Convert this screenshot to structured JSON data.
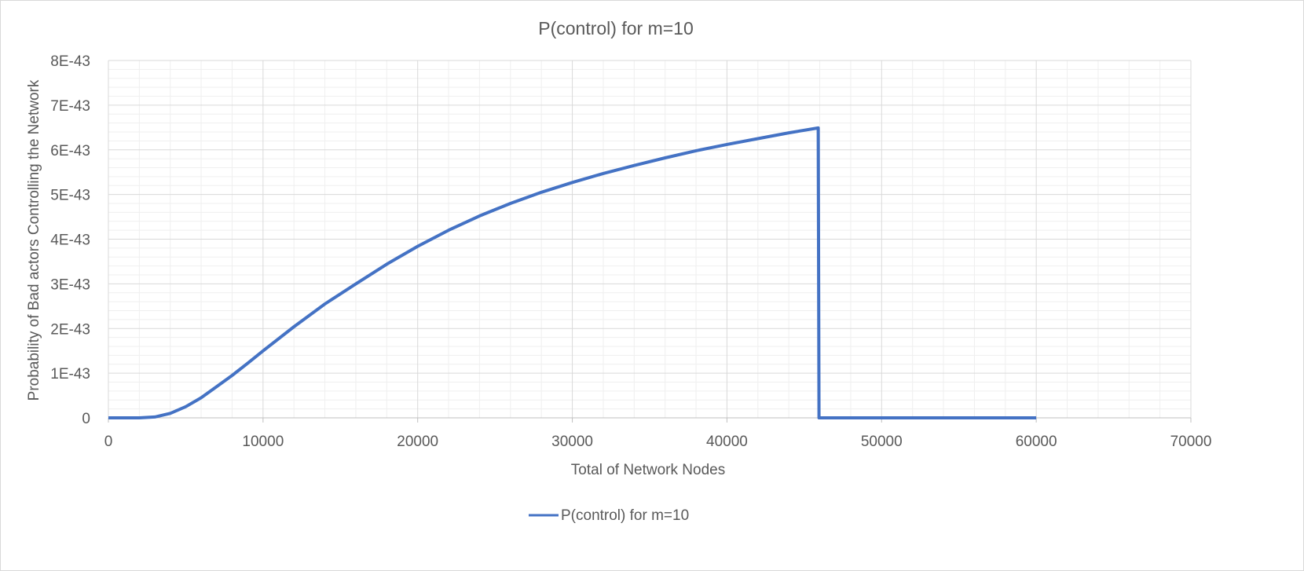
{
  "chart_data": {
    "type": "line",
    "title": "P(control) for m=10",
    "xlabel": "Total of Network Nodes",
    "ylabel": "Probability of Bad actors Controlling the Network",
    "xlim": [
      0,
      70000
    ],
    "ylim": [
      0,
      8e-43
    ],
    "x_ticks": [
      "0",
      "10000",
      "20000",
      "30000",
      "40000",
      "50000",
      "60000",
      "70000"
    ],
    "y_ticks": [
      "0",
      "1E-43",
      "2E-43",
      "3E-43",
      "4E-43",
      "5E-43",
      "6E-43",
      "7E-43",
      "8E-43"
    ],
    "grid": true,
    "legend_position": "bottom",
    "series": [
      {
        "name": "P(control) for m=10",
        "color": "#4472C4",
        "x": [
          0,
          2000,
          3000,
          4000,
          5000,
          6000,
          7000,
          8000,
          9000,
          10000,
          12000,
          14000,
          16000,
          18000,
          20000,
          22000,
          24000,
          26000,
          28000,
          30000,
          32000,
          34000,
          36000,
          38000,
          40000,
          42000,
          44000,
          45900,
          45950,
          50000,
          55000,
          60000
        ],
        "y": [
          0,
          0,
          2e-45,
          1e-44,
          2.5e-44,
          4.5e-44,
          7e-44,
          9.5e-44,
          1.22e-43,
          1.5e-43,
          2.04e-43,
          2.55e-43,
          3e-43,
          3.44e-43,
          3.84e-43,
          4.2e-43,
          4.52e-43,
          4.8e-43,
          5.05e-43,
          5.27e-43,
          5.47e-43,
          5.65e-43,
          5.82e-43,
          5.98e-43,
          6.12e-43,
          6.25e-43,
          6.38e-43,
          6.49e-43,
          0,
          0,
          0,
          0
        ]
      }
    ]
  }
}
